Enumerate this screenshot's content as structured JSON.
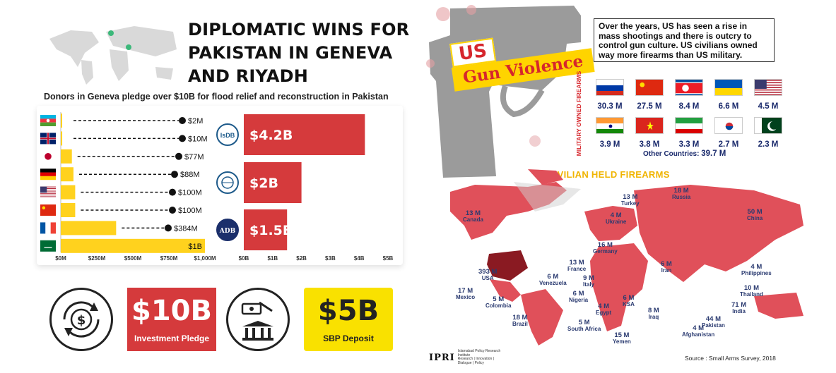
{
  "left": {
    "title": "DIPLOMATIC WINS FOR PAKISTAN IN GENEVA AND RIYADH",
    "title_lines": [
      "DIPLOMATIC WINS FOR",
      "PAKISTAN IN GENEVA",
      "AND RIYADH"
    ],
    "subtitle": "Donors in Geneva pledge over $10B for flood relief and reconstruction in Pakistan",
    "colors": {
      "country_bar": "#ffd21e",
      "institution_bar": "#d53a3c",
      "dot": "#111111"
    },
    "cards": [
      {
        "amount": "$10B",
        "label": "Investment Pledge",
        "color": "#d53a3c"
      },
      {
        "amount": "$5B",
        "label": "SBP Deposit",
        "color": "#f9e100"
      }
    ],
    "icons": [
      "world-map-icon",
      "money-cycle-icon",
      "bank-hand-icon",
      "isdb-logo",
      "world-bank-logo",
      "adb-logo"
    ]
  },
  "chart_data": [
    {
      "type": "bar",
      "orientation": "horizontal",
      "categories": [
        "Azerbaijan",
        "United Kingdom",
        "Japan",
        "Germany",
        "United States",
        "China",
        "France",
        "Saudi Arabia"
      ],
      "values": [
        2,
        10,
        77,
        88,
        100,
        100,
        384,
        1000
      ],
      "data_labels": [
        "$2M",
        "$10M",
        "$77M",
        "$88M",
        "$100M",
        "$100M",
        "$384M",
        "$1B"
      ],
      "xticks": [
        "$0M",
        "$250M",
        "$500M",
        "$750M",
        "$1,000M"
      ],
      "xlim": [
        0,
        1000
      ],
      "icons": [
        "azerbaijan-flag-icon",
        "uk-flag-icon",
        "japan-flag-icon",
        "germany-flag-icon",
        "usa-flag-icon",
        "china-flag-icon",
        "france-flag-icon",
        "saudi-flag-icon"
      ]
    },
    {
      "type": "bar",
      "orientation": "horizontal",
      "categories": [
        "IsDB",
        "World Bank",
        "ADB"
      ],
      "values": [
        4.2,
        2,
        1.5
      ],
      "data_labels": [
        "$4.2B",
        "$2B",
        "$1.5B"
      ],
      "xticks": [
        "$0B",
        "$1B",
        "$2B",
        "$3B",
        "$4B",
        "$5B"
      ],
      "xlim": [
        0,
        5
      ]
    },
    {
      "type": "table",
      "title": "MILITARY OWNED FIREARMS",
      "rows": [
        {
          "flag": "russia-flag-icon",
          "value": "30.3 M"
        },
        {
          "flag": "china-flag-icon",
          "value": "27.5 M"
        },
        {
          "flag": "north-korea-flag-icon",
          "value": "8.4 M"
        },
        {
          "flag": "ukraine-flag-icon",
          "value": "6.6 M"
        },
        {
          "flag": "usa-flag-icon",
          "value": "4.5 M"
        },
        {
          "flag": "india-flag-icon",
          "value": "3.9 M"
        },
        {
          "flag": "vietnam-flag-icon",
          "value": "3.8 M"
        },
        {
          "flag": "iran-flag-icon",
          "value": "3.3 M"
        },
        {
          "flag": "south-korea-flag-icon",
          "value": "2.7 M"
        },
        {
          "flag": "pakistan-flag-icon",
          "value": "2.3 M"
        }
      ],
      "other_label": "Other Countries:",
      "other_value": "39.7 M"
    },
    {
      "type": "table",
      "title": "CIVILIAN HELD FIREARMS",
      "rows": [
        {
          "country": "Canada",
          "value": "13 M"
        },
        {
          "country": "USA",
          "value": "393 M"
        },
        {
          "country": "Mexico",
          "value": "17 M"
        },
        {
          "country": "Colombia",
          "value": "5 M"
        },
        {
          "country": "Venezuela",
          "value": "6 M"
        },
        {
          "country": "Brazil",
          "value": "18 M"
        },
        {
          "country": "Russia",
          "value": "18 M"
        },
        {
          "country": "Turkey",
          "value": "13 M"
        },
        {
          "country": "Ukraine",
          "value": "4 M"
        },
        {
          "country": "Germany",
          "value": "16 M"
        },
        {
          "country": "France",
          "value": "13 M"
        },
        {
          "country": "Italy",
          "value": "9 M"
        },
        {
          "country": "Nigeria",
          "value": "6 M"
        },
        {
          "country": "Egypt",
          "value": "4 M"
        },
        {
          "country": "South Africa",
          "value": "5 M"
        },
        {
          "country": "KSA",
          "value": "6 M"
        },
        {
          "country": "Iran",
          "value": "6 M"
        },
        {
          "country": "Iraq",
          "value": "8 M"
        },
        {
          "country": "Yemen",
          "value": "15 M"
        },
        {
          "country": "Afghanistan",
          "value": "4 M"
        },
        {
          "country": "Pakistan",
          "value": "44 M"
        },
        {
          "country": "India",
          "value": "71 M"
        },
        {
          "country": "Thailand",
          "value": "10 M"
        },
        {
          "country": "Philippines",
          "value": "4 M"
        },
        {
          "country": "China",
          "value": "50 M"
        }
      ]
    }
  ],
  "right": {
    "badge_us": "US",
    "badge_gun": "Gun Violence",
    "info_text": "Over the years, US has seen a rise in mass shootings and there is outcry to control gun culture. US civilians owned way more firearms than US military.",
    "military_label": "MILITARY OWNED FIREARMS",
    "civilian_title": "CIVILIAN HELD FIREARMS",
    "ipri_logo": "IPRI",
    "ipri_name": "Islamabad Policy Research Institute",
    "ipri_tagline": "Research | Innovation | Dialogue | Policy",
    "source": "Source : Small Arms Survey, 2018",
    "colors": {
      "brand_red": "#d6262c",
      "badge_yellow": "#ffd400",
      "map_red": "#e0505a",
      "map_dark": "#8a1a22",
      "gun_gray": "#9b9b9b",
      "label_navy": "#2a3a70",
      "title_gold": "#f0b400"
    }
  }
}
